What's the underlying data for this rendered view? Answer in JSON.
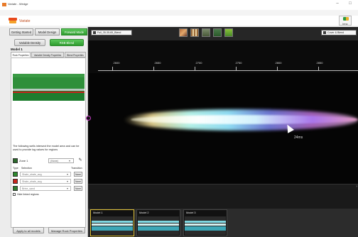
{
  "window": {
    "title": "Variate - Wedge",
    "controls": [
      "–",
      "□"
    ]
  },
  "header": {
    "app_name": "Variate",
    "badge_text": "ienc"
  },
  "left_panel": {
    "tabs": [
      "Getting Started",
      "Model Design",
      "Forward Mode"
    ],
    "buttons": [
      "Variable Density",
      "RSB Blend"
    ],
    "model_name": "Model 1",
    "sub_tabs": [
      "Rock Properties",
      "Variable Density Properties",
      "Blend Properties"
    ],
    "description": "The following wells intersect the model area and can be used to provide log values for regions",
    "zone": {
      "label": "Zone 1",
      "select_value": "(None)",
      "wand_icon": "magic-wand-icon"
    },
    "table_headers": {
      "type": "Type",
      "selection": "Selection",
      "transition": "Transition"
    },
    "rows": [
      {
        "color": "#2e8b2e",
        "selection": "Shale_shale_avg",
        "button": "None"
      },
      {
        "color": "#c8241c",
        "selection": "Shale_shale_avg",
        "button": "None"
      },
      {
        "color": "#2e7d2e",
        "selection": "Brine_sand",
        "button": "None"
      }
    ],
    "hide_regions_label": "Hide linked regions",
    "bottom_buttons": [
      "Apply to all models",
      "Manage Rock Properties"
    ]
  },
  "viewer": {
    "dataset_left": "Full_35-35-65_Blend",
    "dataset_right": "Cover & Blend",
    "ruler_labels": [
      "2600",
      "2650",
      "2700",
      "2750",
      "2800",
      "2850"
    ],
    "readout": "24ms"
  },
  "thumbnails": [
    "Model 1",
    "Model 2",
    "Model 3"
  ],
  "colors": {
    "accent_green": "#2e9b2e",
    "brand_orange": "#e84a1c",
    "selection_yellow": "#e1c23a"
  }
}
